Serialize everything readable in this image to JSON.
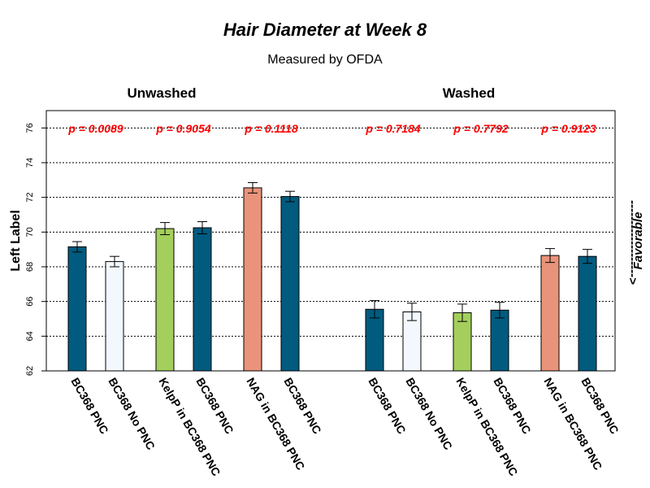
{
  "chart_data": {
    "type": "bar",
    "title": "Hair Diameter at Week 8",
    "subtitle": "Measured by OFDA",
    "ylabel": "Left Label",
    "side_label": "Favorable",
    "side_arrow": "------------------->",
    "ylim": [
      62,
      77
    ],
    "yticks": [
      "62",
      "64",
      "66",
      "68",
      "70",
      "72",
      "74",
      "76"
    ],
    "grid": true,
    "colors": {
      "bc368_pnc": "#005b7f",
      "no_pnc": "#f2f8fd",
      "kelp": "#a4cf5c",
      "nag": "#e9947a",
      "pvalue": "#ff0000",
      "grid": "#000000"
    },
    "groups": [
      {
        "label": "Unwashed",
        "bars": [
          {
            "category": "BC368 PNC",
            "value": 69.15,
            "error": 0.3,
            "color_key": "bc368_pnc"
          },
          {
            "category": "BC368 No PNC",
            "value": 68.3,
            "error": 0.3,
            "color_key": "no_pnc"
          },
          {
            "category": "KelpP in BC368 PNC",
            "value": 70.2,
            "error": 0.35,
            "color_key": "kelp"
          },
          {
            "category": "BC368 PNC",
            "value": 70.25,
            "error": 0.35,
            "color_key": "bc368_pnc"
          },
          {
            "category": "NAG in BC368 PNC",
            "value": 72.55,
            "error": 0.3,
            "color_key": "nag"
          },
          {
            "category": "BC368 PNC",
            "value": 72.05,
            "error": 0.3,
            "color_key": "bc368_pnc"
          }
        ],
        "pvalues": [
          "p = 0.0089",
          "p = 0.9054",
          "p = 0.1118"
        ]
      },
      {
        "label": "Washed",
        "bars": [
          {
            "category": "BC368 PNC",
            "value": 65.55,
            "error": 0.5,
            "color_key": "bc368_pnc"
          },
          {
            "category": "BC368 No PNC",
            "value": 65.4,
            "error": 0.5,
            "color_key": "no_pnc"
          },
          {
            "category": "KelpP in BC368 PNC",
            "value": 65.35,
            "error": 0.5,
            "color_key": "kelp"
          },
          {
            "category": "BC368 PNC",
            "value": 65.5,
            "error": 0.45,
            "color_key": "bc368_pnc"
          },
          {
            "category": "NAG in BC368 PNC",
            "value": 68.65,
            "error": 0.4,
            "color_key": "nag"
          },
          {
            "category": "BC368 PNC",
            "value": 68.6,
            "error": 0.4,
            "color_key": "bc368_pnc"
          }
        ],
        "pvalues": [
          "p = 0.7184",
          "p = 0.7792",
          "p = 0.9123"
        ]
      }
    ]
  }
}
